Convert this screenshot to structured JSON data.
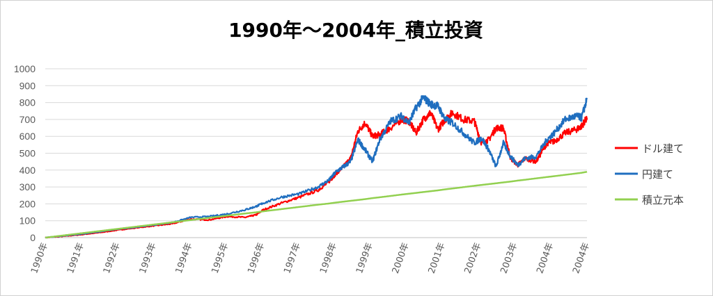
{
  "chart_data": {
    "type": "line",
    "title": "1990年～2004年_積立投資",
    "xlabel": "",
    "ylabel": "",
    "ylim": [
      0,
      1000
    ],
    "yticks": [
      0,
      100,
      200,
      300,
      400,
      500,
      600,
      700,
      800,
      900,
      1000
    ],
    "xticks": [
      "1990年",
      "1991年",
      "1992年",
      "1993年",
      "1994年",
      "1995年",
      "1996年",
      "1997年",
      "1998年",
      "1999年",
      "2000年",
      "2001年",
      "2002年",
      "2003年",
      "2004年",
      "2004年"
    ],
    "grid": "horizontal",
    "legend_position": "right",
    "x": [
      1990.0,
      1990.5,
      1991.0,
      1991.5,
      1992.0,
      1992.5,
      1993.0,
      1993.5,
      1994.0,
      1994.5,
      1995.0,
      1995.5,
      1995.8,
      1996.0,
      1996.5,
      1997.0,
      1997.5,
      1997.8,
      1998.0,
      1998.2,
      1998.4,
      1998.6,
      1998.8,
      1999.0,
      1999.2,
      1999.5,
      1999.8,
      2000.0,
      2000.2,
      2000.4,
      2000.6,
      2000.8,
      2001.0,
      2001.2,
      2001.5,
      2001.8,
      2002.0,
      2002.2,
      2002.4,
      2002.6,
      2002.8,
      2003.0,
      2003.2,
      2003.5,
      2003.8,
      2004.0,
      2004.3,
      2004.6,
      2004.75,
      2004.9
    ],
    "series": [
      {
        "name": "ドル建て",
        "color": "#ff0000",
        "values": [
          0,
          8,
          18,
          30,
          45,
          58,
          70,
          82,
          110,
          105,
          125,
          120,
          135,
          165,
          205,
          240,
          280,
          330,
          380,
          420,
          470,
          630,
          680,
          600,
          610,
          650,
          700,
          690,
          620,
          700,
          740,
          640,
          700,
          740,
          700,
          690,
          560,
          580,
          650,
          650,
          470,
          430,
          470,
          450,
          560,
          570,
          620,
          640,
          660,
          710
        ]
      },
      {
        "name": "円建て",
        "color": "#1f6ebf",
        "values": [
          0,
          10,
          22,
          35,
          50,
          62,
          75,
          90,
          120,
          125,
          140,
          165,
          185,
          205,
          240,
          260,
          300,
          340,
          390,
          420,
          450,
          580,
          520,
          450,
          580,
          690,
          720,
          680,
          770,
          830,
          790,
          780,
          700,
          680,
          620,
          560,
          590,
          520,
          420,
          560,
          480,
          430,
          470,
          480,
          580,
          620,
          700,
          720,
          710,
          820
        ]
      },
      {
        "name": "積立元本",
        "color": "#92d050",
        "values": [
          0,
          13,
          26,
          39,
          52,
          65,
          78,
          91,
          104,
          117,
          130,
          143,
          150,
          156,
          169,
          182,
          195,
          202,
          208,
          213,
          218,
          223,
          228,
          234,
          239,
          247,
          255,
          260,
          265,
          270,
          275,
          280,
          286,
          291,
          299,
          307,
          312,
          317,
          322,
          327,
          332,
          338,
          343,
          351,
          359,
          364,
          372,
          380,
          384,
          390
        ]
      }
    ]
  }
}
